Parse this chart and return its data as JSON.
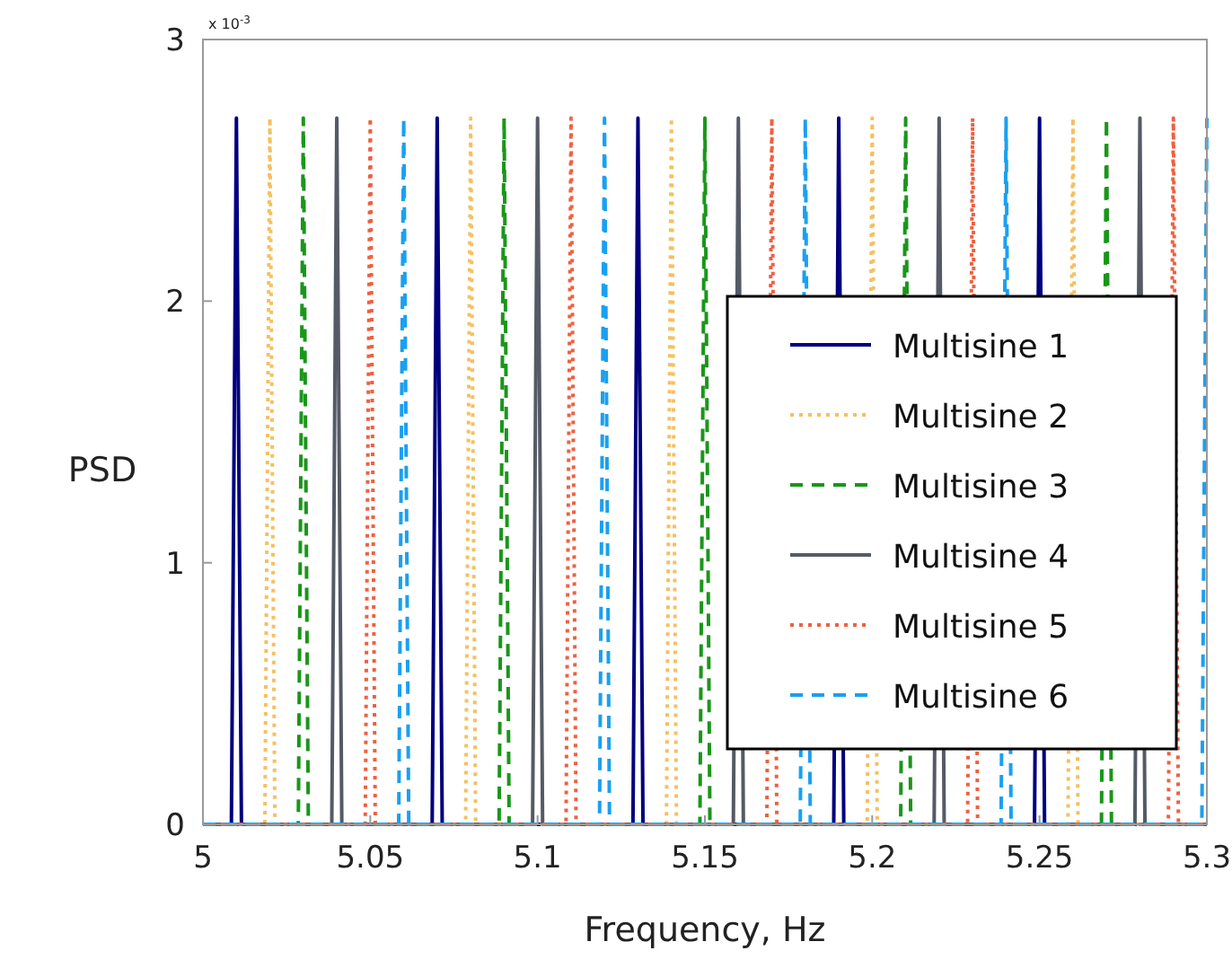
{
  "chart_data": {
    "type": "line",
    "xlabel": "Frequency, Hz",
    "ylabel": "PSD",
    "annotations": [
      "x 10$^{-3}$"
    ],
    "xlim": [
      5,
      5.3
    ],
    "xticks": [
      5,
      5.05,
      5.1,
      5.15,
      5.2,
      5.25,
      5.3
    ],
    "ylim": [
      0,
      3
    ],
    "yticks": [
      0,
      1,
      2,
      3
    ],
    "grid": false,
    "legend": "right",
    "series": [
      {
        "name": "Multisine 1",
        "color": "#00007f",
        "line_style": "solid",
        "x": [
          5,
          5.0085,
          5.01,
          5.0115,
          5.0685,
          5.07,
          5.0715,
          5.1285,
          5.13,
          5.1315,
          5.1885,
          5.19,
          5.1915,
          5.2485,
          5.25,
          5.2515,
          5.3
        ],
        "values": [
          0,
          0,
          2.7,
          0,
          0,
          2.7,
          0,
          0,
          2.7,
          0,
          0,
          2.7,
          0,
          0,
          2.7,
          0,
          0
        ]
      },
      {
        "name": "Multisine 2",
        "color": "#f5c060",
        "line_style": "dotted",
        "x": [
          5,
          5.0185,
          5.02,
          5.0215,
          5.0785,
          5.08,
          5.0815,
          5.1385,
          5.14,
          5.1415,
          5.1985,
          5.2,
          5.2015,
          5.2585,
          5.26,
          5.2615,
          5.3
        ],
        "values": [
          0,
          0,
          2.7,
          0,
          0,
          2.7,
          0,
          0,
          2.7,
          0,
          0,
          2.7,
          0,
          0,
          2.7,
          0,
          0
        ]
      },
      {
        "name": "Multisine 3",
        "color": "#1a961a",
        "line_style": "dashed",
        "x": [
          5,
          5.0285,
          5.03,
          5.0315,
          5.0885,
          5.09,
          5.0915,
          5.1485,
          5.15,
          5.1515,
          5.2085,
          5.21,
          5.2115,
          5.2685,
          5.27,
          5.2715,
          5.3
        ],
        "values": [
          0,
          0,
          2.7,
          0,
          0,
          2.7,
          0,
          0,
          2.7,
          0,
          0,
          2.7,
          0,
          0,
          2.7,
          0,
          0
        ]
      },
      {
        "name": "Multisine 4",
        "color": "#555a66",
        "line_style": "solid",
        "x": [
          5,
          5.0385,
          5.04,
          5.0415,
          5.0985,
          5.1,
          5.1015,
          5.1585,
          5.16,
          5.1615,
          5.2185,
          5.22,
          5.2215,
          5.2785,
          5.28,
          5.2815,
          5.3
        ],
        "values": [
          0,
          0,
          2.7,
          0,
          0,
          2.7,
          0,
          0,
          2.7,
          0,
          0,
          2.7,
          0,
          0,
          2.7,
          0,
          0
        ]
      },
      {
        "name": "Multisine 5",
        "color": "#f06040",
        "line_style": "dotted",
        "x": [
          5,
          5.0485,
          5.05,
          5.0515,
          5.1085,
          5.11,
          5.1115,
          5.1685,
          5.17,
          5.1715,
          5.2285,
          5.23,
          5.2315,
          5.2885,
          5.29,
          5.2915,
          5.3
        ],
        "values": [
          0,
          0,
          2.7,
          0,
          0,
          2.7,
          0,
          0,
          2.7,
          0,
          0,
          2.7,
          0,
          0,
          2.7,
          0,
          0
        ]
      },
      {
        "name": "Multisine 6",
        "color": "#1aa0f0",
        "line_style": "dashed",
        "x": [
          5,
          5.0585,
          5.06,
          5.0615,
          5.1185,
          5.12,
          5.1215,
          5.1785,
          5.18,
          5.1815,
          5.2385,
          5.24,
          5.2415,
          5.2985,
          5.3
        ],
        "values": [
          0,
          0,
          2.7,
          0,
          0,
          2.7,
          0,
          0,
          2.7,
          0,
          0,
          2.7,
          0,
          0,
          2.7
        ]
      }
    ]
  }
}
